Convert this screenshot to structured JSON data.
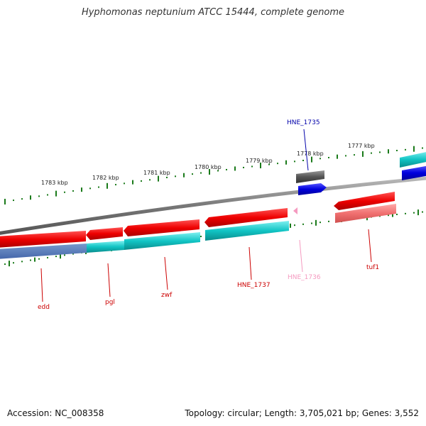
{
  "title": "Hyphomonas neptunium ATCC 15444, complete genome",
  "footer": {
    "accession": "Accession: NC_008358",
    "summary": "Topology: circular; Length: 3,705,021 bp; Genes: 3,552"
  },
  "colors": {
    "forward_strand": "#ee0000",
    "reverse_strand": "#11c4c4",
    "tick": "#1a7a1a",
    "backbone": "#888888",
    "trna_like": "#555555",
    "blue_feature": "#0000dd",
    "pink_feature": "#f59ac0",
    "label_red": "#cc0000",
    "label_blue": "#0000aa",
    "label_pink": "#f59ac0"
  },
  "scale": {
    "unit": "kbp",
    "tick_labels": [
      "1783 kbp",
      "1782 kbp",
      "1781 kbp",
      "1780 kbp",
      "1779 kbp",
      "1778 kbp",
      "1777 kbp"
    ]
  },
  "genes": [
    {
      "label": "edd",
      "color_key": "label_red"
    },
    {
      "label": "pgl",
      "color_key": "label_red"
    },
    {
      "label": "zwf",
      "color_key": "label_red"
    },
    {
      "label": "HNE_1737",
      "color_key": "label_red"
    },
    {
      "label": "HNE_1736",
      "color_key": "label_pink"
    },
    {
      "label": "HNE_1735",
      "color_key": "label_blue"
    },
    {
      "label": "tuf1",
      "color_key": "label_red"
    }
  ]
}
